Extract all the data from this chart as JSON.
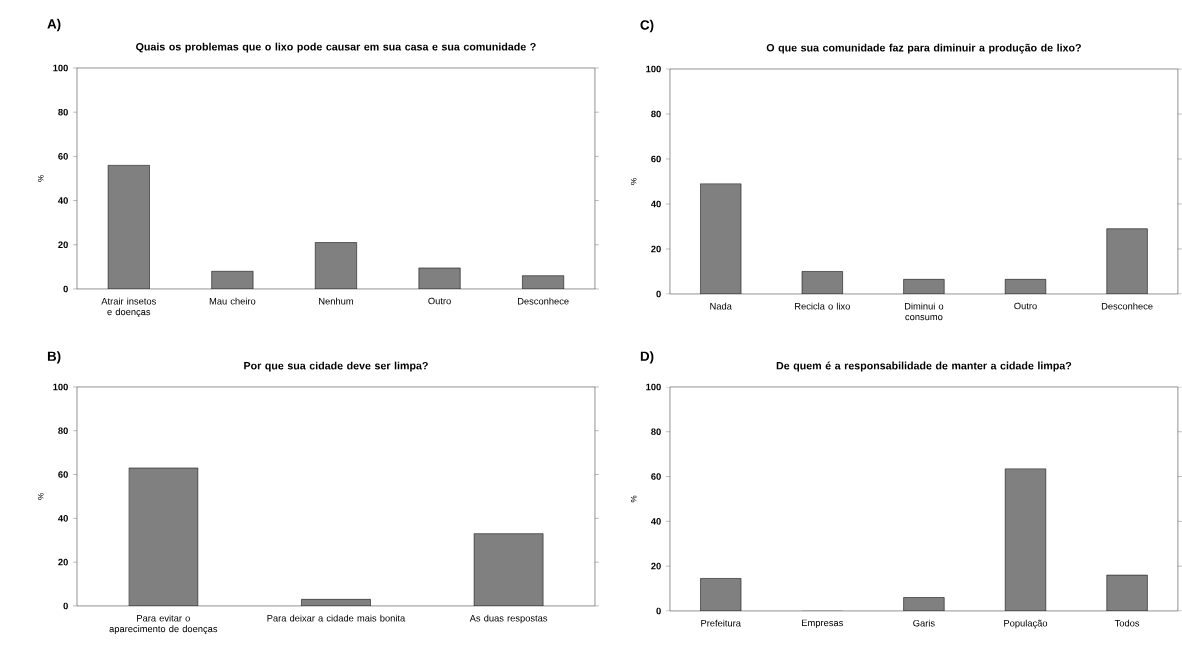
{
  "chart_data": [
    {
      "type": "bar",
      "title": "Quais os problemas que o lixo pode causar em sua casa e sua comunidade ?",
      "ylabel": "%",
      "annotations": [
        "A)"
      ],
      "categories": [
        "Atrair insetos e doenças",
        "Mau cheiro",
        "Nenhum",
        "Outro",
        "Desconhece"
      ],
      "values": [
        56,
        8,
        21,
        9.5,
        6
      ],
      "color": "#808080",
      "ylim": [
        0,
        100
      ],
      "yticks": [
        0,
        20,
        40,
        60,
        80,
        100
      ]
    },
    {
      "type": "bar",
      "title": "O que sua comunidade faz para diminuir a produção de lixo?",
      "ylabel": "%",
      "annotations": [
        "C)"
      ],
      "categories": [
        "Nada",
        "Recicla o lixo",
        "Diminui o consumo",
        "Outro",
        "Desconhece"
      ],
      "values": [
        49,
        10,
        6.5,
        6.5,
        29
      ],
      "color": "#808080",
      "ylim": [
        0,
        100
      ],
      "yticks": [
        0,
        20,
        40,
        60,
        80,
        100
      ]
    },
    {
      "type": "bar",
      "title": "Por que sua cidade deve ser limpa?",
      "ylabel": "%",
      "annotations": [
        "B)"
      ],
      "categories": [
        "Para evitar o aparecimento de doenças",
        "Para deixar a cidade mais bonita",
        "As duas respostas"
      ],
      "values": [
        63,
        3,
        33
      ],
      "color": "#808080",
      "ylim": [
        0,
        100
      ],
      "yticks": [
        0,
        20,
        40,
        60,
        80,
        100
      ]
    },
    {
      "type": "bar",
      "title": "De quem é a responsabilidade de manter a cidade limpa?",
      "ylabel": "%",
      "annotations": [
        "D)"
      ],
      "categories": [
        "Prefeitura",
        "Empresas",
        "Garis",
        "População",
        "Todos"
      ],
      "values": [
        14.5,
        0,
        6,
        63.5,
        16
      ],
      "color": "#808080",
      "ylim": [
        0,
        100
      ],
      "yticks": [
        0,
        20,
        40,
        60,
        80,
        100
      ]
    }
  ]
}
